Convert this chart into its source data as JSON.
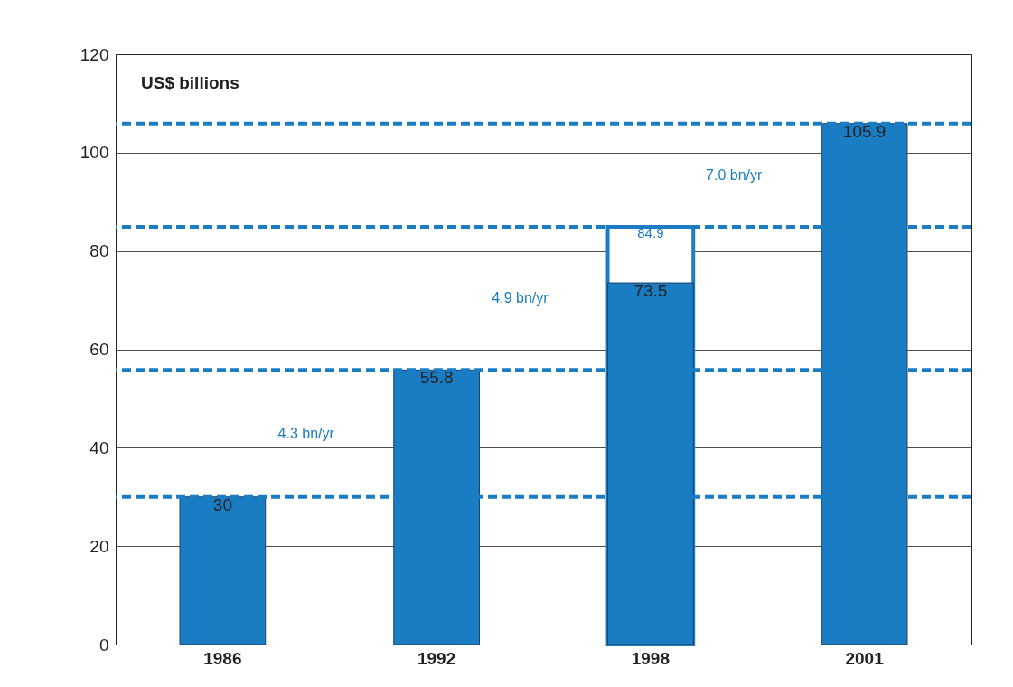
{
  "chart_data": {
    "type": "bar",
    "ylabel": "US$ billions",
    "categories": [
      "1986",
      "1992",
      "1998",
      "2001"
    ],
    "data_labels": true,
    "series": [
      {
        "color": "#1a7dc4",
        "values": [
          30,
          55.8,
          73.5,
          105.9
        ]
      },
      {
        "color": "#1a7dc4",
        "values": [
          null,
          null,
          84.9,
          null
        ]
      }
    ],
    "ylim": [
      0,
      120
    ],
    "yticks": [
      0,
      20,
      40,
      60,
      80,
      100,
      120
    ],
    "grid": "y",
    "ref_lines": [
      {
        "axis": "y",
        "value": 30,
        "color": "#1a7dc4",
        "line_style": "dashed"
      },
      {
        "axis": "y",
        "value": 55.8,
        "color": "#1a7dc4",
        "line_style": "dashed"
      },
      {
        "axis": "y",
        "value": 84.9,
        "color": "#1a7dc4",
        "line_style": "dashed"
      },
      {
        "axis": "y",
        "value": 105.9,
        "color": "#1a7dc4",
        "line_style": "dashed"
      }
    ],
    "annotations": [
      "4.3 bn/yr",
      "4.9 bn/yr",
      "7.0 bn/yr"
    ]
  }
}
